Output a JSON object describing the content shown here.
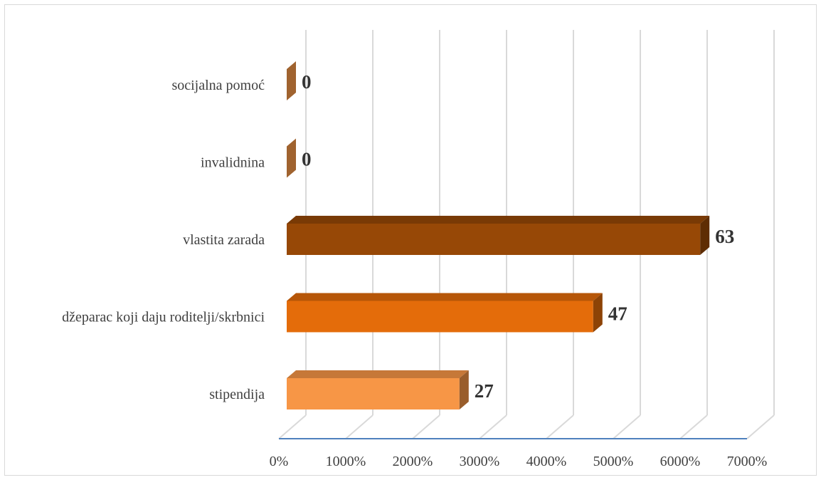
{
  "chart_data": {
    "type": "bar",
    "orientation": "horizontal",
    "three_d": true,
    "title": "",
    "xlabel": "",
    "ylabel": "",
    "categories": [
      "stipendija",
      "džeparac koji daju roditelji/skrbnici",
      "vlastita zarada",
      "invalidnina",
      "socijalna pomoć"
    ],
    "values": [
      27,
      47,
      63,
      0,
      0
    ],
    "data_labels": [
      "27",
      "47",
      "63",
      "0",
      "0"
    ],
    "x_ticks": [
      "0%",
      "1000%",
      "2000%",
      "3000%",
      "4000%",
      "5000%",
      "6000%",
      "7000%"
    ],
    "xlim": [
      0,
      70
    ],
    "grid": true,
    "legend": "none",
    "colors": {
      "stipendija": "#F79646",
      "džeparac koji daju roditelji/skrbnici": "#E46C0A",
      "vlastita zarada": "#974806",
      "invalidnina": "#A0632F",
      "socijalna pomoć": "#A0632F"
    }
  }
}
